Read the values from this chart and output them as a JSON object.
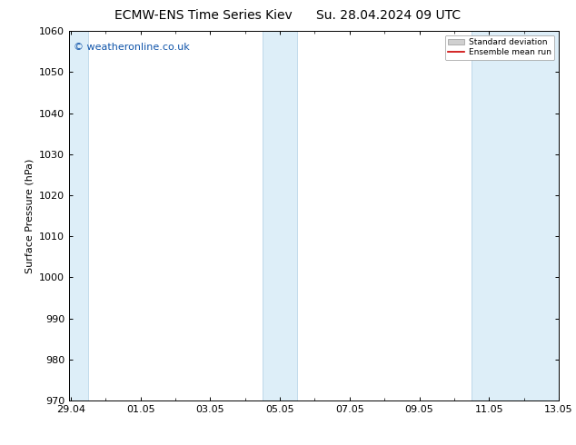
{
  "title_left": "ECMW-ENS Time Series Kiev",
  "title_right": "Su. 28.04.2024 09 UTC",
  "ylabel": "Surface Pressure (hPa)",
  "ylim": [
    970,
    1060
  ],
  "yticks": [
    970,
    980,
    990,
    1000,
    1010,
    1020,
    1030,
    1040,
    1050,
    1060
  ],
  "xtick_labels": [
    "29.04",
    "01.05",
    "03.05",
    "05.05",
    "07.05",
    "09.05",
    "11.05",
    "13.05"
  ],
  "xtick_positions_days": [
    0,
    2,
    4,
    6,
    8,
    10,
    12,
    14
  ],
  "total_days": 15,
  "shaded_bands": [
    {
      "x_start_day": -0.05,
      "x_end_day": 0.5
    },
    {
      "x_start_day": 5.5,
      "x_end_day": 6.0
    },
    {
      "x_start_day": 6.0,
      "x_end_day": 6.5
    },
    {
      "x_start_day": 11.5,
      "x_end_day": 12.0
    },
    {
      "x_start_day": 12.0,
      "x_end_day": 14.05
    }
  ],
  "band_color": "#ddeef8",
  "band_edge_color": "#b8d4e8",
  "background_color": "#ffffff",
  "plot_bg_color": "#ffffff",
  "watermark_text": "© weatheronline.co.uk",
  "watermark_color": "#1155aa",
  "legend_std_label": "Standard deviation",
  "legend_mean_label": "Ensemble mean run",
  "legend_std_color": "#d0d0d0",
  "legend_mean_color": "#cc0000",
  "title_fontsize": 10,
  "axis_fontsize": 8,
  "tick_fontsize": 8,
  "watermark_fontsize": 8
}
